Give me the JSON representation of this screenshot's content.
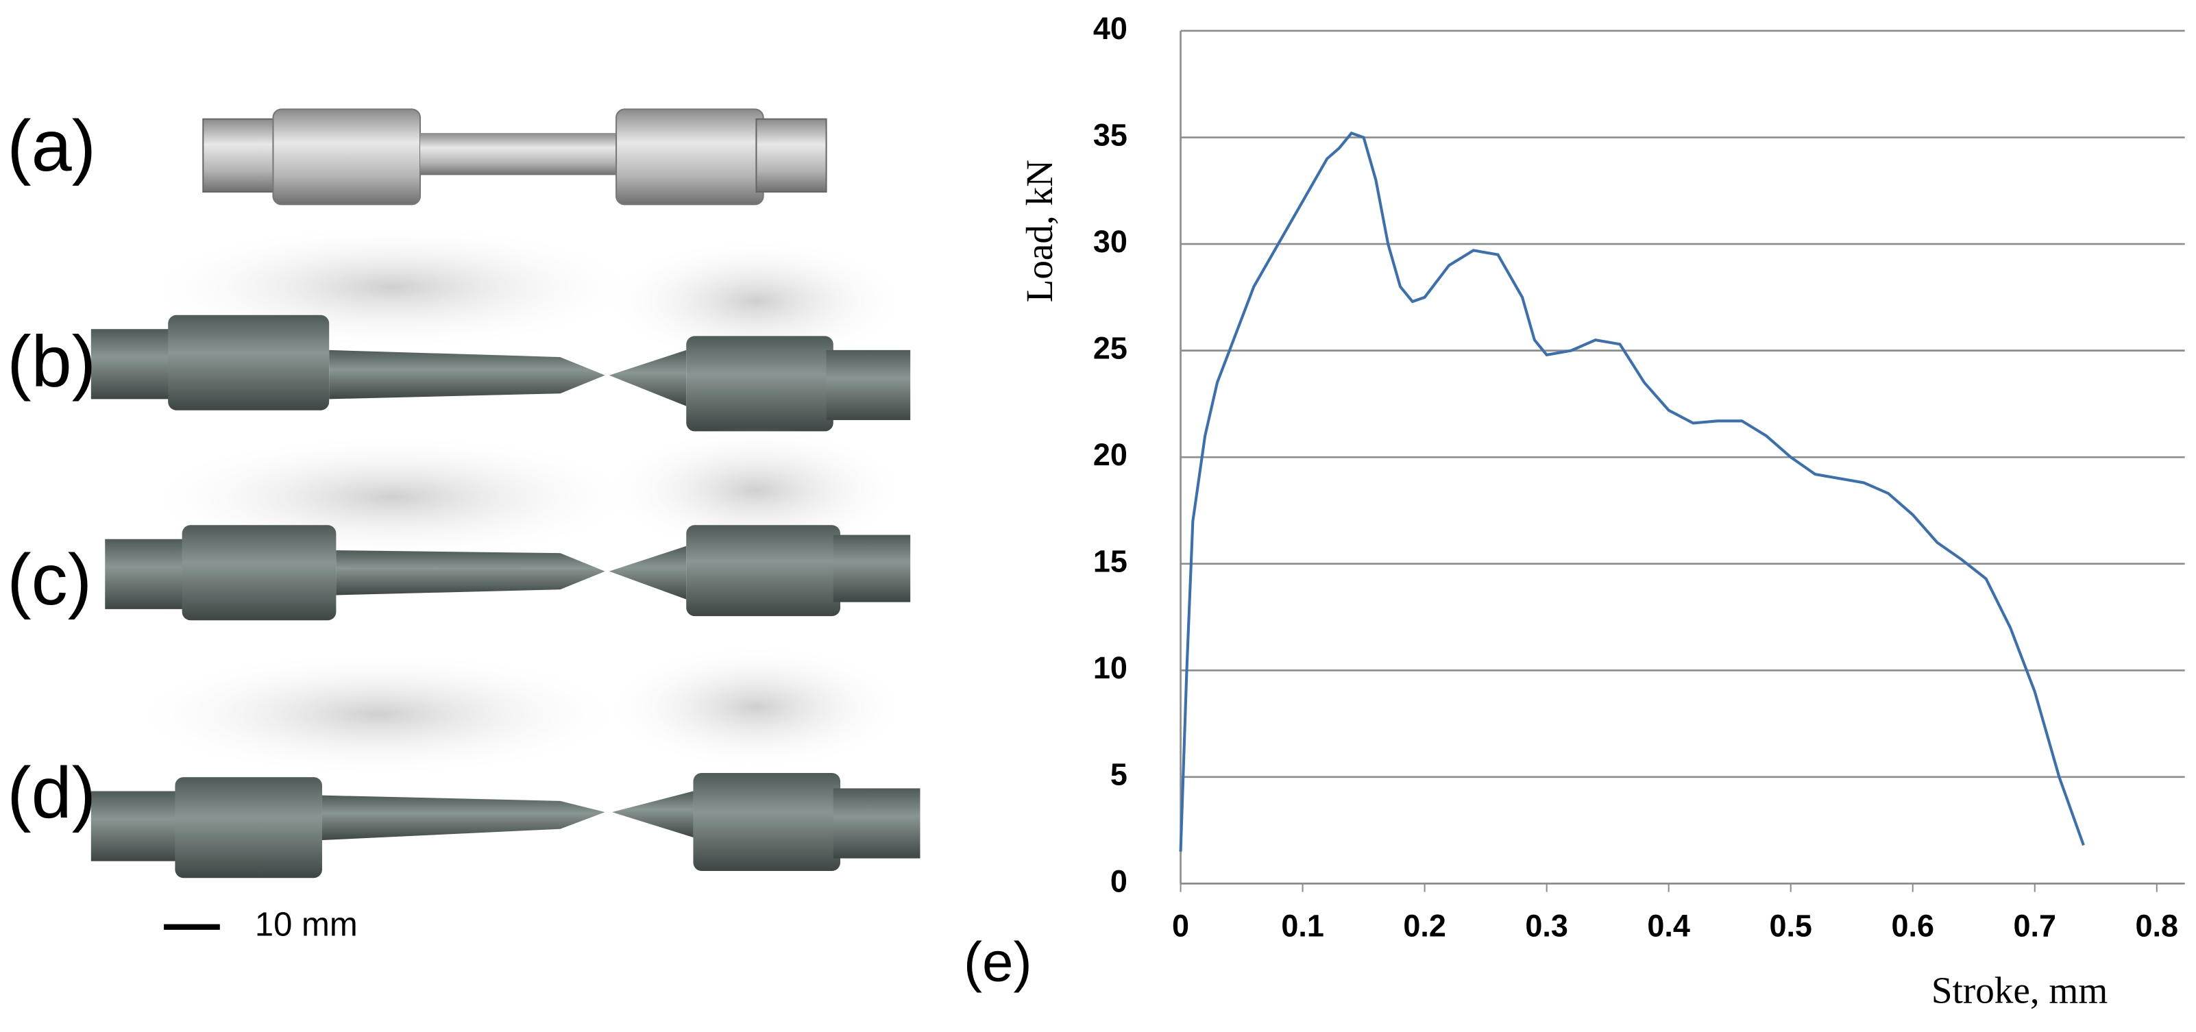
{
  "panel_labels": [
    "(a)",
    "(b)",
    "(c)",
    "(d)"
  ],
  "scale_bar": "10 mm",
  "chart_data": {
    "type": "line",
    "panel_label": "(e)",
    "x_label": "Stroke, mm",
    "y_label": "Load, kN",
    "x": [
      0,
      0.005,
      0.01,
      0.02,
      0.03,
      0.04,
      0.06,
      0.08,
      0.1,
      0.12,
      0.13,
      0.14,
      0.15,
      0.16,
      0.17,
      0.18,
      0.19,
      0.2,
      0.22,
      0.24,
      0.26,
      0.28,
      0.29,
      0.3,
      0.32,
      0.34,
      0.36,
      0.38,
      0.4,
      0.42,
      0.44,
      0.46,
      0.48,
      0.5,
      0.52,
      0.56,
      0.58,
      0.6,
      0.62,
      0.64,
      0.66,
      0.68,
      0.7,
      0.72,
      0.74
    ],
    "values": [
      1.5,
      10,
      17,
      21,
      23.5,
      25,
      28,
      30,
      32,
      34,
      34.5,
      35.2,
      35,
      33,
      30,
      28,
      27.3,
      27.5,
      29,
      29.7,
      29.5,
      27.5,
      25.5,
      24.8,
      25,
      25.5,
      25.3,
      23.5,
      22.2,
      21.6,
      21.7,
      21.7,
      21,
      20,
      19.2,
      18.8,
      18.3,
      17.3,
      16,
      15.2,
      14.3,
      12,
      9,
      5,
      1.8
    ],
    "color": "#3a6fb0",
    "xlim": [
      0,
      0.8
    ],
    "ylim": [
      0,
      40
    ],
    "xticks": [
      0,
      0.1,
      0.2,
      0.3,
      0.4,
      0.5,
      0.6,
      0.7,
      0.8
    ],
    "yticks": [
      0,
      5,
      10,
      15,
      20,
      25,
      30,
      35,
      40
    ],
    "grid": true
  }
}
